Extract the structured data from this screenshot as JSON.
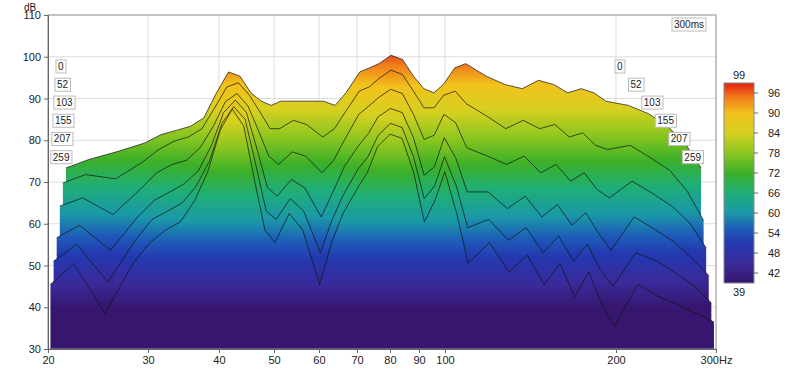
{
  "chart_data": {
    "type": "waterfall",
    "ylabel": "dB",
    "z_label": "300ms",
    "log": "x",
    "grid": true,
    "x": [
      20,
      22,
      25,
      28,
      30,
      32,
      34,
      36,
      38,
      40,
      42,
      44,
      46,
      48,
      50,
      53,
      56,
      60,
      63,
      66,
      70,
      73,
      76,
      80,
      84,
      88,
      92,
      96,
      100,
      105,
      110,
      120,
      130,
      140,
      150,
      160,
      170,
      180,
      190,
      200,
      220,
      240,
      260,
      280,
      300
    ],
    "xlim": [
      20,
      300
    ],
    "xticks": [
      20,
      30,
      40,
      50,
      60,
      70,
      80,
      90,
      100,
      200,
      {
        "value": 300,
        "label": "300Hz"
      }
    ],
    "ylim": [
      30,
      110
    ],
    "yticks": [
      30,
      40,
      50,
      60,
      70,
      80,
      90,
      100,
      110
    ],
    "zlim": [
      0,
      300
    ],
    "zticks": [
      0,
      52,
      103,
      155,
      207,
      259
    ],
    "series": [
      {
        "z": 0,
        "values": [
          70,
          72,
          74,
          76,
          78,
          79,
          80,
          82,
          88,
          93,
          92,
          88,
          86,
          85,
          86,
          86,
          86,
          86,
          85,
          88,
          93,
          94,
          95,
          97,
          96,
          92,
          89,
          88,
          90,
          94,
          95,
          92,
          90,
          89,
          91,
          90,
          88,
          89,
          88,
          86,
          85,
          83,
          80,
          76,
          70
        ]
      },
      {
        "z": 52,
        "values": [
          67,
          69,
          68,
          72,
          75,
          77,
          78,
          80,
          85,
          90,
          91,
          88,
          84,
          80,
          80,
          82,
          81,
          78,
          80,
          84,
          89,
          90,
          92,
          94,
          93,
          89,
          85,
          85,
          88,
          89,
          86,
          83,
          80,
          82,
          80,
          81,
          78,
          79,
          76,
          75,
          76,
          73,
          70,
          65,
          58
        ]
      },
      {
        "z": 103,
        "values": [
          62,
          64,
          60,
          66,
          70,
          72,
          73,
          76,
          81,
          87,
          89,
          86,
          80,
          74,
          72,
          75,
          74,
          70,
          73,
          78,
          84,
          86,
          88,
          90,
          89,
          84,
          78,
          79,
          84,
          82,
          76,
          74,
          72,
          74,
          70,
          72,
          68,
          70,
          66,
          64,
          68,
          65,
          62,
          58,
          52
        ]
      },
      {
        "z": 155,
        "values": [
          55,
          58,
          52,
          60,
          64,
          66,
          68,
          71,
          77,
          85,
          88,
          85,
          76,
          67,
          65,
          69,
          67,
          60,
          66,
          72,
          77,
          80,
          84,
          86,
          85,
          79,
          70,
          72,
          79,
          74,
          66,
          66,
          62,
          65,
          60,
          63,
          58,
          61,
          56,
          52,
          60,
          57,
          54,
          50,
          46
        ]
      },
      {
        "z": 207,
        "values": [
          50,
          54,
          45,
          55,
          60,
          62,
          64,
          68,
          74,
          83,
          87,
          84,
          73,
          62,
          60,
          65,
          62,
          52,
          60,
          66,
          72,
          75,
          80,
          83,
          82,
          75,
          65,
          68,
          75,
          68,
          58,
          60,
          55,
          58,
          52,
          56,
          50,
          54,
          48,
          44,
          52,
          50,
          47,
          44,
          40
        ]
      },
      {
        "z": 259,
        "values": [
          45,
          50,
          38,
          50,
          55,
          58,
          60,
          65,
          72,
          82,
          87,
          83,
          70,
          58,
          55,
          62,
          58,
          45,
          55,
          62,
          68,
          72,
          78,
          81,
          80,
          72,
          60,
          65,
          72,
          62,
          50,
          55,
          48,
          52,
          45,
          50,
          42,
          48,
          40,
          35,
          45,
          42,
          40,
          38,
          36
        ]
      }
    ],
    "colorbar": {
      "range": [
        39,
        99
      ],
      "ticks": [
        39,
        42,
        48,
        54,
        60,
        66,
        72,
        78,
        84,
        90,
        96,
        99
      ]
    }
  }
}
